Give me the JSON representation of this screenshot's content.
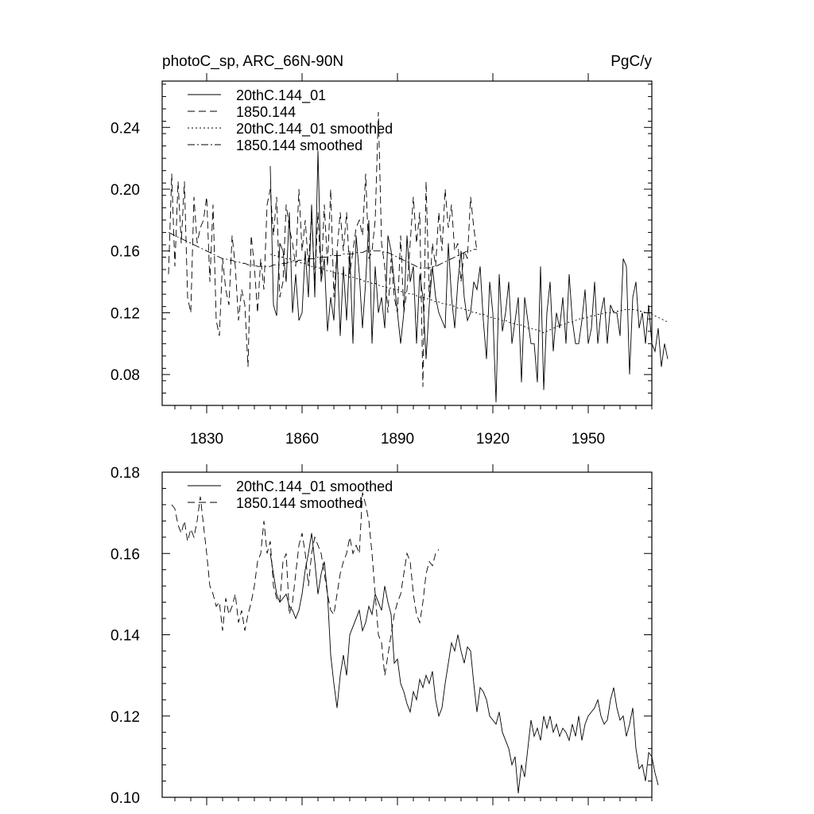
{
  "chart_data": [
    {
      "type": "line",
      "title_left": "photoC_sp, ARC_66N-90N",
      "title_right": "PgC/y",
      "xlabel": "",
      "ylabel": "",
      "xlim": [
        1816,
        1970
      ],
      "ylim": [
        0.06,
        0.27
      ],
      "x_ticks": [
        1830,
        1860,
        1890,
        1920,
        1950
      ],
      "x_tick_labels": [
        "1830",
        "1860",
        "1890",
        "1920",
        "1950"
      ],
      "y_ticks": [
        0.08,
        0.12,
        0.16,
        0.2,
        0.24
      ],
      "y_tick_labels": [
        "0.08",
        "0.12",
        "0.16",
        "0.20",
        "0.24"
      ],
      "legend_position": "top-left",
      "series": [
        {
          "name": "20thC.144_01",
          "style": "solid",
          "x_start": 1850,
          "values": [
            0.215,
            0.125,
            0.118,
            0.165,
            0.16,
            0.14,
            0.185,
            0.12,
            0.145,
            0.115,
            0.12,
            0.16,
            0.13,
            0.19,
            0.13,
            0.225,
            0.14,
            0.155,
            0.108,
            0.13,
            0.115,
            0.16,
            0.105,
            0.15,
            0.115,
            0.16,
            0.1,
            0.17,
            0.145,
            0.11,
            0.14,
            0.18,
            0.1,
            0.15,
            0.12,
            0.13,
            0.11,
            0.17,
            0.16,
            0.14,
            0.12,
            0.1,
            0.12,
            0.17,
            0.14,
            0.15,
            0.1,
            0.145,
            0.13,
            0.09,
            0.125,
            0.15,
            0.13,
            0.12,
            0.115,
            0.11,
            0.165,
            0.13,
            0.11,
            0.14,
            0.16,
            0.13,
            0.115,
            0.12,
            0.14,
            0.135,
            0.15,
            0.115,
            0.09,
            0.14,
            0.12,
            0.062,
            0.145,
            0.108,
            0.12,
            0.14,
            0.1,
            0.115,
            0.13,
            0.075,
            0.13,
            0.115,
            0.1,
            0.1,
            0.075,
            0.15,
            0.07,
            0.12,
            0.14,
            0.095,
            0.12,
            0.11,
            0.13,
            0.1,
            0.145,
            0.115,
            0.1,
            0.1,
            0.115,
            0.135,
            0.1,
            0.11,
            0.14,
            0.1,
            0.12,
            0.13,
            0.1,
            0.125,
            0.12,
            0.12,
            0.105,
            0.155,
            0.15,
            0.08,
            0.13,
            0.14,
            0.11,
            0.12,
            0.1,
            0.125,
            0.1,
            0.095,
            0.11,
            0.085,
            0.1,
            0.09
          ]
        },
        {
          "name": "1850.144",
          "style": "dashed",
          "x_start": 1818,
          "values": [
            0.145,
            0.21,
            0.15,
            0.205,
            0.165,
            0.205,
            0.13,
            0.12,
            0.195,
            0.165,
            0.175,
            0.18,
            0.195,
            0.14,
            0.19,
            0.115,
            0.105,
            0.155,
            0.135,
            0.125,
            0.17,
            0.15,
            0.115,
            0.135,
            0.125,
            0.085,
            0.17,
            0.15,
            0.12,
            0.155,
            0.135,
            0.19,
            0.2,
            0.17,
            0.195,
            0.13,
            0.14,
            0.19,
            0.175,
            0.165,
            0.15,
            0.2,
            0.16,
            0.18,
            0.15,
            0.185,
            0.14,
            0.185,
            0.14,
            0.19,
            0.15,
            0.2,
            0.13,
            0.16,
            0.185,
            0.16,
            0.185,
            0.145,
            0.16,
            0.175,
            0.18,
            0.17,
            0.21,
            0.155,
            0.16,
            0.18,
            0.25,
            0.165,
            0.15,
            0.12,
            0.155,
            0.13,
            0.12,
            0.17,
            0.12,
            0.135,
            0.165,
            0.195,
            0.165,
            0.185,
            0.072,
            0.205,
            0.13,
            0.165,
            0.15,
            0.185,
            0.16,
            0.2,
            0.175,
            0.19,
            0.16,
            0.165,
            0.14,
            0.16,
            0.155,
            0.195,
            0.175,
            0.16
          ]
        },
        {
          "name": "20thC.144_01 smoothed",
          "style": "dotted",
          "x_start": 1850,
          "values": [
            0.158,
            0.157,
            0.157,
            0.156,
            0.156,
            0.155,
            0.155,
            0.154,
            0.153,
            0.153,
            0.152,
            0.152,
            0.151,
            0.15,
            0.15,
            0.149,
            0.149,
            0.148,
            0.147,
            0.147,
            0.146,
            0.146,
            0.145,
            0.145,
            0.144,
            0.143,
            0.143,
            0.142,
            0.142,
            0.141,
            0.14,
            0.14,
            0.139,
            0.139,
            0.138,
            0.137,
            0.137,
            0.136,
            0.136,
            0.135,
            0.135,
            0.134,
            0.133,
            0.133,
            0.132,
            0.132,
            0.131,
            0.13,
            0.13,
            0.129,
            0.129,
            0.128,
            0.127,
            0.127,
            0.126,
            0.126,
            0.125,
            0.125,
            0.124,
            0.123,
            0.123,
            0.122,
            0.122,
            0.121,
            0.12,
            0.12,
            0.119,
            0.119,
            0.118,
            0.117,
            0.117,
            0.116,
            0.116,
            0.115,
            0.115,
            0.114,
            0.113,
            0.113,
            0.112,
            0.112,
            0.111,
            0.11,
            0.11,
            0.109,
            0.109,
            0.108,
            0.107,
            0.108,
            0.109,
            0.11,
            0.111,
            0.112,
            0.112,
            0.113,
            0.114,
            0.114,
            0.115,
            0.116,
            0.116,
            0.117,
            0.117,
            0.118,
            0.118,
            0.119,
            0.119,
            0.12,
            0.12,
            0.12,
            0.121,
            0.121,
            0.121,
            0.122,
            0.122,
            0.122,
            0.122,
            0.122,
            0.121,
            0.121,
            0.12,
            0.12,
            0.119,
            0.118,
            0.117,
            0.116,
            0.115,
            0.114
          ]
        },
        {
          "name": "1850.144 smoothed",
          "style": "dashdot",
          "x_start": 1818,
          "values": [
            0.172,
            0.171,
            0.17,
            0.169,
            0.168,
            0.167,
            0.166,
            0.165,
            0.164,
            0.163,
            0.162,
            0.161,
            0.16,
            0.159,
            0.158,
            0.157,
            0.156,
            0.155,
            0.155,
            0.154,
            0.154,
            0.153,
            0.153,
            0.152,
            0.152,
            0.151,
            0.151,
            0.151,
            0.15,
            0.15,
            0.15,
            0.15,
            0.15,
            0.151,
            0.151,
            0.151,
            0.152,
            0.152,
            0.153,
            0.153,
            0.153,
            0.154,
            0.154,
            0.155,
            0.155,
            0.155,
            0.155,
            0.156,
            0.156,
            0.156,
            0.156,
            0.157,
            0.157,
            0.157,
            0.157,
            0.158,
            0.158,
            0.158,
            0.158,
            0.159,
            0.159,
            0.159,
            0.16,
            0.16,
            0.16,
            0.16,
            0.16,
            0.16,
            0.159,
            0.159,
            0.158,
            0.157,
            0.156,
            0.155,
            0.154,
            0.153,
            0.152,
            0.151,
            0.15,
            0.149,
            0.149,
            0.149,
            0.149,
            0.15,
            0.15,
            0.151,
            0.152,
            0.153,
            0.154,
            0.155,
            0.156,
            0.157,
            0.158,
            0.159,
            0.16,
            0.16,
            0.161,
            0.161
          ]
        }
      ]
    },
    {
      "type": "line",
      "title_left": "",
      "title_right": "",
      "xlabel": "",
      "ylabel": "",
      "xlim": [
        1816,
        1970
      ],
      "ylim": [
        0.1,
        0.18
      ],
      "x_ticks": [
        1830,
        1860,
        1890,
        1920,
        1950
      ],
      "x_tick_labels": [],
      "y_ticks": [
        0.1,
        0.12,
        0.14,
        0.16,
        0.18
      ],
      "y_tick_labels": [
        "0.10",
        "0.12",
        "0.14",
        "0.16",
        "0.18"
      ],
      "legend_position": "top-left",
      "series": [
        {
          "name": "20thC.144_01 smoothed",
          "style": "solid",
          "x_start": 1850,
          "values": [
            0.16,
            0.155,
            0.15,
            0.148,
            0.149,
            0.15,
            0.147,
            0.146,
            0.144,
            0.146,
            0.15,
            0.156,
            0.16,
            0.165,
            0.158,
            0.15,
            0.155,
            0.158,
            0.15,
            0.135,
            0.128,
            0.122,
            0.13,
            0.135,
            0.13,
            0.14,
            0.142,
            0.144,
            0.146,
            0.141,
            0.143,
            0.147,
            0.145,
            0.15,
            0.148,
            0.146,
            0.152,
            0.148,
            0.145,
            0.133,
            0.134,
            0.128,
            0.126,
            0.123,
            0.121,
            0.126,
            0.124,
            0.129,
            0.127,
            0.13,
            0.128,
            0.131,
            0.124,
            0.12,
            0.122,
            0.128,
            0.133,
            0.138,
            0.136,
            0.14,
            0.136,
            0.133,
            0.137,
            0.136,
            0.128,
            0.121,
            0.127,
            0.126,
            0.124,
            0.12,
            0.119,
            0.118,
            0.121,
            0.116,
            0.114,
            0.112,
            0.108,
            0.11,
            0.101,
            0.108,
            0.105,
            0.112,
            0.119,
            0.115,
            0.117,
            0.114,
            0.12,
            0.117,
            0.12,
            0.116,
            0.118,
            0.115,
            0.117,
            0.116,
            0.114,
            0.118,
            0.115,
            0.12,
            0.114,
            0.118,
            0.12,
            0.121,
            0.122,
            0.124,
            0.12,
            0.118,
            0.119,
            0.124,
            0.127,
            0.122,
            0.119,
            0.12,
            0.115,
            0.118,
            0.122,
            0.112,
            0.107,
            0.108,
            0.104,
            0.111,
            0.11,
            0.106,
            0.103
          ]
        },
        {
          "name": "1850.144 smoothed",
          "style": "dashed",
          "x_start": 1819,
          "values": [
            0.172,
            0.171,
            0.167,
            0.165,
            0.168,
            0.163,
            0.166,
            0.164,
            0.168,
            0.174,
            0.167,
            0.16,
            0.152,
            0.15,
            0.147,
            0.148,
            0.141,
            0.149,
            0.145,
            0.147,
            0.15,
            0.143,
            0.146,
            0.141,
            0.145,
            0.148,
            0.152,
            0.158,
            0.16,
            0.168,
            0.16,
            0.163,
            0.152,
            0.149,
            0.148,
            0.158,
            0.16,
            0.145,
            0.148,
            0.155,
            0.162,
            0.165,
            0.16,
            0.152,
            0.16,
            0.164,
            0.162,
            0.16,
            0.155,
            0.15,
            0.146,
            0.145,
            0.15,
            0.155,
            0.158,
            0.16,
            0.164,
            0.16,
            0.162,
            0.16,
            0.175,
            0.172,
            0.168,
            0.16,
            0.15,
            0.14,
            0.138,
            0.13,
            0.135,
            0.14,
            0.145,
            0.148,
            0.15,
            0.155,
            0.16,
            0.158,
            0.15,
            0.145,
            0.143,
            0.148,
            0.155,
            0.158,
            0.157,
            0.16,
            0.161
          ]
        }
      ]
    }
  ]
}
